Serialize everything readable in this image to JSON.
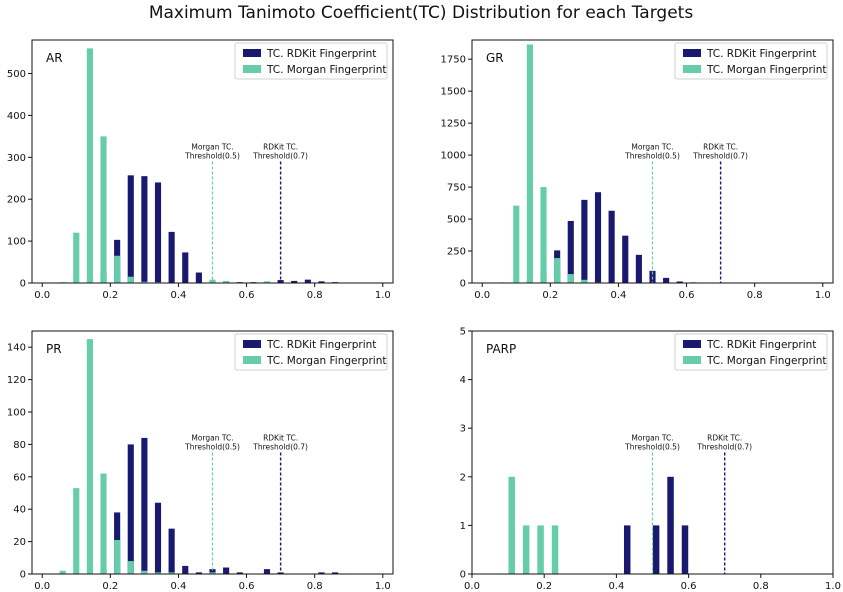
{
  "figure_title": "Maximum Tanimoto Coefficient(TC) Distribution for each Targets",
  "legend": {
    "rdkit": "TC. RDKit Fingerprint",
    "morgan": "TC. Morgan Fingerprint"
  },
  "annotations": {
    "morgan_line1": "Morgan TC.",
    "morgan_line2": "Threshold(0.5)",
    "rdkit_line1": "RDKit TC.",
    "rdkit_line2": "Threshold(0.7)"
  },
  "colors": {
    "rdkit": "#191970",
    "morgan": "#66cdaa",
    "morgan_line": "#66cdaa",
    "rdkit_line": "#191970"
  },
  "chart_data": [
    {
      "type": "bar",
      "label": "AR",
      "xlim": [
        -0.03,
        1.03
      ],
      "ylim": [
        0,
        580
      ],
      "xticks": [
        "0.0",
        "0.2",
        "0.4",
        "0.6",
        "0.8",
        "1.0"
      ],
      "yticks": [
        "0",
        "100",
        "200",
        "300",
        "400",
        "500"
      ],
      "thresholds": {
        "morgan": 0.5,
        "rdkit": 0.7
      },
      "series": [
        {
          "name": "TC. RDKit Fingerprint",
          "x": [
            0.18,
            0.22,
            0.26,
            0.3,
            0.34,
            0.38,
            0.42,
            0.46,
            0.5,
            0.54,
            0.58,
            0.62,
            0.66,
            0.7,
            0.74,
            0.78,
            0.82,
            0.86
          ],
          "values": [
            25,
            103,
            257,
            255,
            240,
            122,
            73,
            25,
            5,
            3,
            2,
            2,
            3,
            7,
            5,
            8,
            4,
            2
          ]
        },
        {
          "name": "TC. Morgan Fingerprint",
          "x": [
            0.06,
            0.1,
            0.14,
            0.18,
            0.22,
            0.26,
            0.3,
            0.34,
            0.38,
            0.42,
            0.46,
            0.5,
            0.54,
            0.58,
            0.62,
            0.66
          ],
          "values": [
            2,
            120,
            560,
            350,
            65,
            15,
            3,
            2,
            1,
            1,
            1,
            8,
            5,
            1,
            1,
            4
          ]
        }
      ]
    },
    {
      "type": "bar",
      "label": "GR",
      "xlim": [
        -0.03,
        1.03
      ],
      "ylim": [
        0,
        1900
      ],
      "xticks": [
        "0.0",
        "0.2",
        "0.4",
        "0.6",
        "0.8",
        "1.0"
      ],
      "yticks": [
        "0",
        "250",
        "500",
        "750",
        "1000",
        "1250",
        "1500",
        "1750"
      ],
      "thresholds": {
        "morgan": 0.5,
        "rdkit": 0.7
      },
      "series": [
        {
          "name": "TC. RDKit Fingerprint",
          "x": [
            0.14,
            0.18,
            0.22,
            0.26,
            0.3,
            0.34,
            0.38,
            0.42,
            0.46,
            0.5,
            0.54,
            0.58,
            0.62,
            0.66,
            0.7,
            0.74,
            0.78,
            0.82
          ],
          "values": [
            15,
            75,
            255,
            485,
            650,
            710,
            565,
            370,
            220,
            95,
            40,
            12,
            5,
            3,
            3,
            2,
            1,
            1
          ],
          "note": ""
        },
        {
          "name": "TC. Morgan Fingerprint",
          "x": [
            0.06,
            0.1,
            0.14,
            0.18,
            0.22,
            0.26,
            0.3,
            0.34,
            0.38,
            0.42,
            0.46,
            0.5,
            0.54
          ],
          "values": [
            5,
            605,
            1865,
            750,
            195,
            70,
            25,
            5,
            3,
            2,
            1,
            1,
            1
          ]
        }
      ]
    },
    {
      "type": "bar",
      "label": "PR",
      "xlim": [
        -0.03,
        1.03
      ],
      "ylim": [
        0,
        150
      ],
      "xticks": [
        "0.0",
        "0.2",
        "0.4",
        "0.6",
        "0.8",
        "1.0"
      ],
      "yticks": [
        "0",
        "20",
        "40",
        "60",
        "80",
        "100",
        "120",
        "140"
      ],
      "thresholds": {
        "morgan": 0.5,
        "rdkit": 0.7
      },
      "series": [
        {
          "name": "TC. RDKit Fingerprint",
          "x": [
            0.18,
            0.22,
            0.26,
            0.3,
            0.34,
            0.38,
            0.42,
            0.46,
            0.5,
            0.54,
            0.58,
            0.62,
            0.66,
            0.7,
            0.74,
            0.78,
            0.82,
            0.86
          ],
          "values": [
            3,
            38,
            80,
            84,
            44,
            28,
            5,
            1,
            3,
            4,
            1,
            0,
            3,
            1,
            0,
            0,
            1,
            1
          ]
        },
        {
          "name": "TC. Morgan Fingerprint",
          "x": [
            0.06,
            0.1,
            0.14,
            0.18,
            0.22,
            0.26,
            0.3,
            0.34,
            0.38,
            0.42,
            0.46,
            0.5
          ],
          "values": [
            2,
            53,
            145,
            62,
            21,
            8,
            2,
            1,
            1,
            0,
            0,
            1
          ]
        }
      ]
    },
    {
      "type": "bar",
      "label": "PARP",
      "xlim": [
        0.0,
        1.0
      ],
      "ylim": [
        0,
        5
      ],
      "xticks": [
        "0.0",
        "0.2",
        "0.4",
        "0.6",
        "0.8",
        "1.0"
      ],
      "yticks": [
        "0",
        "1",
        "2",
        "3",
        "4",
        "5"
      ],
      "thresholds": {
        "morgan": 0.5,
        "rdkit": 0.7
      },
      "series": [
        {
          "name": "TC. RDKit Fingerprint",
          "x": [
            0.43,
            0.51,
            0.55,
            0.59
          ],
          "values": [
            1,
            1,
            2,
            1
          ]
        },
        {
          "name": "TC. Morgan Fingerprint",
          "x": [
            0.11,
            0.15,
            0.19,
            0.23
          ],
          "values": [
            2,
            1,
            1,
            1
          ]
        }
      ]
    }
  ]
}
